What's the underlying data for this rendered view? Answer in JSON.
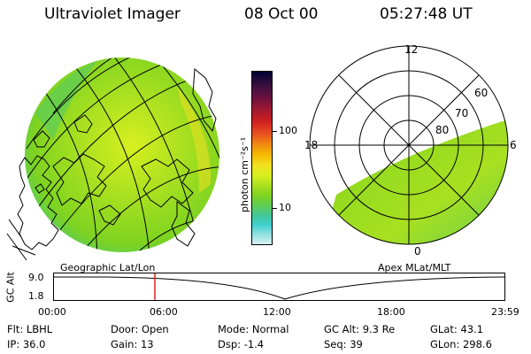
{
  "header": {
    "instrument": "Ultraviolet Imager",
    "date": "08 Oct 00",
    "time": "05:27:48 UT"
  },
  "geo_panel": {
    "caption": "Geographic Lat/Lon"
  },
  "colorbar": {
    "unit_label": "photon cm⁻²s⁻¹",
    "ticks": [
      {
        "label": "100",
        "value": 100
      },
      {
        "label": "10",
        "value": 10
      }
    ],
    "colors": [
      "#000030",
      "#3a1040",
      "#6a1040",
      "#a01830",
      "#d02020",
      "#e85020",
      "#f08810",
      "#f5b800",
      "#f0e020",
      "#d8ef20",
      "#a8e020",
      "#7ed321",
      "#5ccc5a",
      "#40c8a0",
      "#40d0d0",
      "#90e0e0",
      "#d8f0f0"
    ]
  },
  "polar_panel": {
    "caption": "Apex MLat/MLT",
    "mlt_labels": [
      "12",
      "18",
      "6",
      "0"
    ],
    "lat_labels": [
      "60",
      "70",
      "80"
    ]
  },
  "altitude_strip": {
    "axis_title": "GC Alt",
    "y_ticks": [
      "9.0",
      "1.8"
    ],
    "x_ticks": [
      "00:00",
      "06:00",
      "12:00",
      "18:00",
      "23:59"
    ],
    "marker_time": "05:27:48",
    "marker_color": "#e02020"
  },
  "info": {
    "row1": [
      {
        "label": "Flt:",
        "value": "LBHL"
      },
      {
        "label": "Door:",
        "value": "Open"
      },
      {
        "label": "Mode:",
        "value": "Normal"
      },
      {
        "label": "GC Alt:",
        "value": "9.3 Re"
      },
      {
        "label": "GLat:",
        "value": "43.1"
      }
    ],
    "row2": [
      {
        "label": "IP:",
        "value": "36.0"
      },
      {
        "label": "Gain:",
        "value": "13"
      },
      {
        "label": "Dsp:",
        "value": "-1.4"
      },
      {
        "label": "Seq:",
        "value": "39"
      },
      {
        "label": "GLon:",
        "value": "298.6"
      }
    ]
  }
}
